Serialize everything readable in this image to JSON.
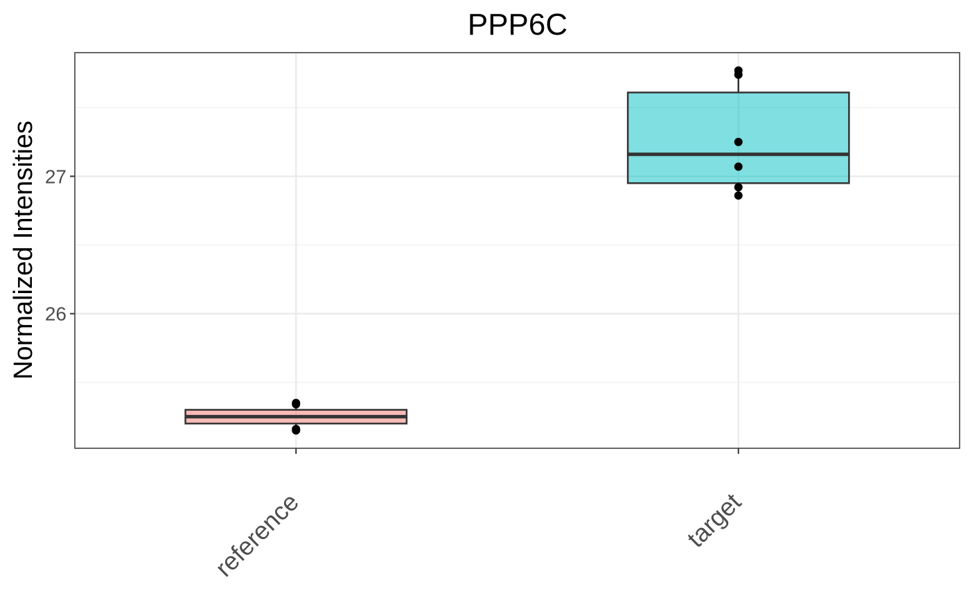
{
  "chart_data": {
    "type": "box",
    "title": "PPP6C",
    "ylabel": "Normalized Intensities",
    "xlabel": "",
    "categories": [
      "reference",
      "target"
    ],
    "yticks": [
      26,
      27
    ],
    "ylim": [
      25.02,
      27.9
    ],
    "grid": true,
    "legend": "none",
    "boxes": [
      {
        "category": "reference",
        "q1": 25.2,
        "median": 25.25,
        "q3": 25.3,
        "whisker_low": 25.15,
        "whisker_high": 25.35,
        "points": [
          25.35,
          25.34,
          25.16,
          25.15
        ],
        "color": "#f8766d"
      },
      {
        "category": "target",
        "q1": 26.95,
        "median": 27.16,
        "q3": 27.61,
        "whisker_low": 26.86,
        "whisker_high": 27.77,
        "points": [
          27.77,
          27.74,
          27.25,
          27.07,
          26.92,
          26.86
        ],
        "color": "#00bfc4"
      }
    ]
  }
}
